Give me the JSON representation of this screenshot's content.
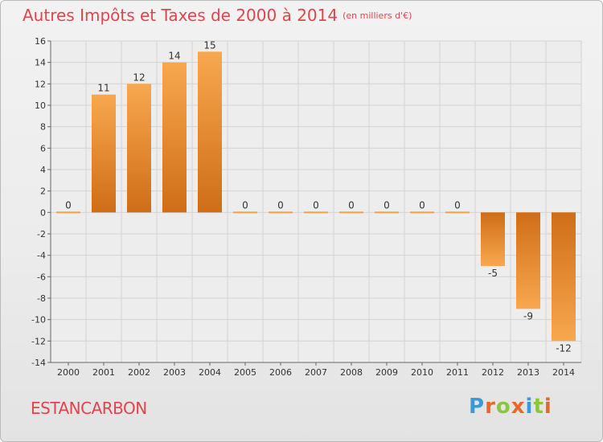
{
  "header": {
    "title": "Autres Impôts et Taxes de 2000 à 2014",
    "unit": "(en milliers d'€)"
  },
  "commune": "ESTANCARBON",
  "brand": {
    "letters": [
      "P",
      "r",
      "o",
      "x",
      "i",
      "t",
      "i"
    ],
    "colors": [
      "#3a9ad9",
      "#e8682c",
      "#8cc63f",
      "#e8682c",
      "#3a9ad9",
      "#8cc63f",
      "#e8682c"
    ]
  },
  "chart_data": {
    "type": "bar",
    "title": "Autres Impôts et Taxes de 2000 à 2014",
    "xlabel": "",
    "ylabel": "",
    "categories": [
      "2000",
      "2001",
      "2002",
      "2003",
      "2004",
      "2005",
      "2006",
      "2007",
      "2008",
      "2009",
      "2010",
      "2011",
      "2012",
      "2013",
      "2014"
    ],
    "values": [
      0,
      11,
      12,
      14,
      15,
      0,
      0,
      0,
      0,
      0,
      0,
      0,
      -5,
      -9,
      -12
    ],
    "ylim": [
      -14,
      16
    ],
    "yticks": [
      16,
      14,
      12,
      10,
      8,
      6,
      4,
      2,
      0,
      -2,
      -4,
      -6,
      -8,
      -10,
      -12,
      -14
    ],
    "grid": true,
    "bar_colors": {
      "light": "#f7a84f",
      "dark": "#cf6d18"
    }
  }
}
